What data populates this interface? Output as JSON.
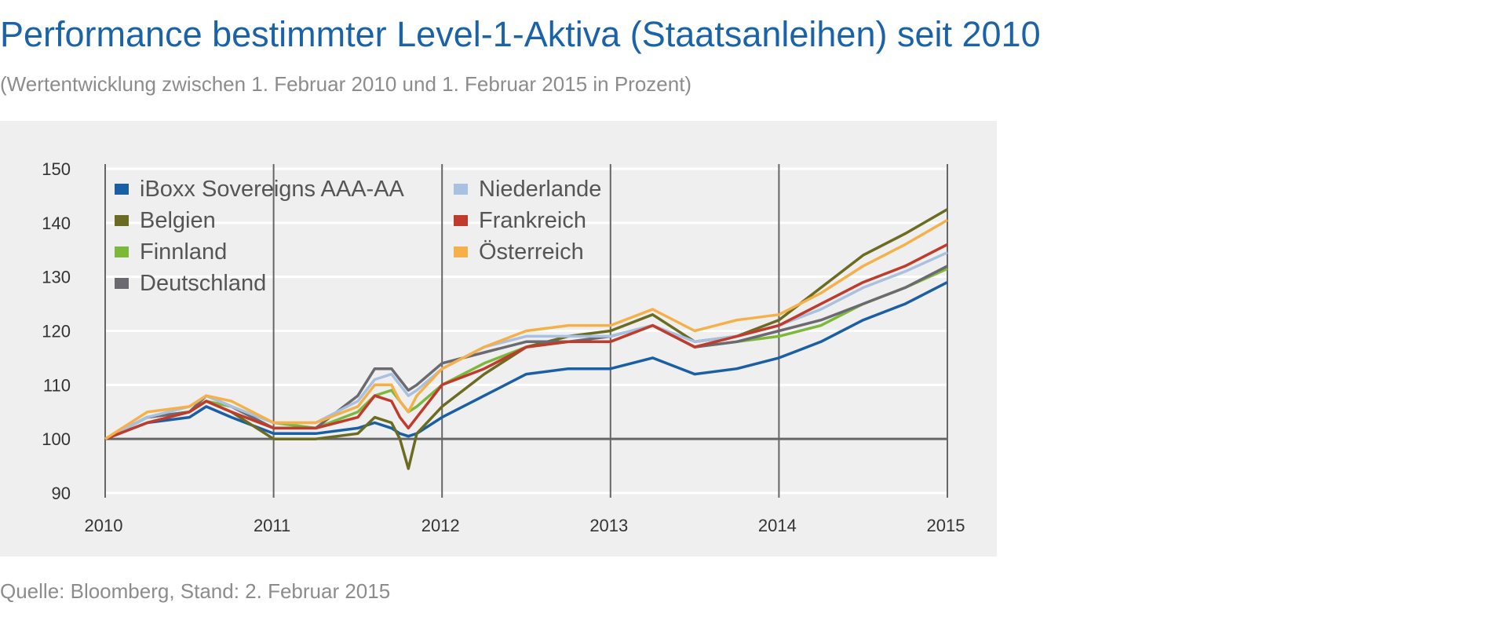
{
  "title": "Performance bestimmter Level-1-Aktiva (Staatsanleihen) seit 2010",
  "subtitle": "(Wertentwicklung zwischen 1. Februar 2010 und 1. Februar 2015 in Prozent)",
  "source": "Quelle: Bloomberg, Stand: 2. Februar 2015",
  "colors": {
    "title": "#1a63a8",
    "panel_background": "#efefef",
    "gridline": "#ffffff",
    "year_line": "#666666",
    "baseline": "#666666"
  },
  "chart_data": {
    "type": "line",
    "title": "Performance bestimmter Level-1-Aktiva (Staatsanleihen) seit 2010",
    "subtitle": "(Wertentwicklung zwischen 1. Februar 2010 und 1. Februar 2015 in Prozent)",
    "xlabel": "",
    "ylabel": "",
    "xlim": [
      2010,
      2015
    ],
    "ylim": [
      90,
      150
    ],
    "x_ticks": [
      "2010",
      "2011",
      "2012",
      "2013",
      "2014",
      "2015"
    ],
    "y_ticks": [
      "90",
      "100",
      "110",
      "120",
      "130",
      "140",
      "150"
    ],
    "baseline": 100,
    "grid": "horizontal",
    "legend_position": "top-left",
    "x": [
      2010.0,
      2010.25,
      2010.5,
      2010.6,
      2010.75,
      2011.0,
      2011.25,
      2011.5,
      2011.6,
      2011.7,
      2011.75,
      2011.8,
      2011.85,
      2012.0,
      2012.25,
      2012.5,
      2012.75,
      2013.0,
      2013.25,
      2013.5,
      2013.75,
      2014.0,
      2014.25,
      2014.5,
      2014.75,
      2015.0
    ],
    "series": [
      {
        "name": "iBoxx Sovereigns AAA-AA",
        "color": "#1a5ea4",
        "values": [
          100,
          103,
          104,
          106,
          104,
          101,
          101,
          102,
          103,
          102,
          101,
          100.5,
          101,
          104,
          108,
          112,
          113,
          113,
          115,
          112,
          113,
          115,
          118,
          122,
          125,
          129
        ]
      },
      {
        "name": "Belgien",
        "color": "#6b6b22",
        "values": [
          100,
          104,
          105,
          107,
          105,
          100,
          100,
          101,
          104,
          103,
          100,
          94.5,
          101,
          106,
          112,
          117,
          119,
          120,
          123,
          118,
          119,
          122,
          128,
          134,
          138,
          142.5
        ]
      },
      {
        "name": "Finnland",
        "color": "#7cb93b",
        "values": [
          100,
          104,
          105,
          107,
          106,
          103,
          102,
          105,
          108,
          109,
          107,
          105,
          106,
          110,
          114,
          117,
          118,
          118,
          121,
          117,
          118,
          119,
          121,
          125,
          128,
          131.5
        ]
      },
      {
        "name": "Deutschland",
        "color": "#6a6a70",
        "values": [
          100,
          104,
          105,
          108,
          106,
          102,
          102,
          108,
          113,
          113,
          111,
          109,
          110,
          114,
          116,
          118,
          118,
          119,
          121,
          117,
          118,
          120,
          122,
          125,
          128,
          132
        ]
      },
      {
        "name": "Niederlande",
        "color": "#a9c1e1",
        "values": [
          100,
          104,
          106,
          108,
          106,
          103,
          103,
          107,
          111,
          112,
          110,
          108,
          109,
          113,
          117,
          119,
          119,
          119,
          121,
          118,
          119,
          121,
          124,
          128,
          131,
          134.5
        ]
      },
      {
        "name": "Frankreich",
        "color": "#c03b2b",
        "values": [
          100,
          103,
          105,
          107,
          105,
          102,
          102,
          104,
          108,
          107,
          104,
          102,
          104,
          110,
          113,
          117,
          118,
          118,
          121,
          117,
          119,
          121,
          125,
          129,
          132,
          136
        ]
      },
      {
        "name": "Österreich",
        "color": "#f6b04a",
        "values": [
          100,
          105,
          106,
          108,
          107,
          103,
          103,
          106,
          110,
          110,
          107,
          105,
          108,
          113,
          117,
          120,
          121,
          121,
          124,
          120,
          122,
          123,
          127,
          132,
          136,
          140.5
        ]
      }
    ]
  }
}
